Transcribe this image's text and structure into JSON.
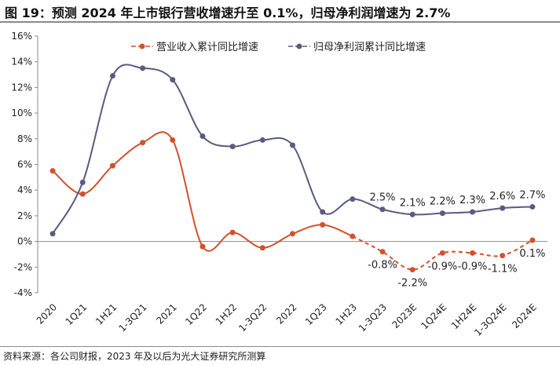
{
  "title": "图 19：预测 2024 年上市银行营收增速升至 0.1%，归母净利润增速为 2.7%",
  "source": "资料来源：各公司财报，2023 年及以后为光大证券研究所测算",
  "colors": {
    "revenue": "#d4502a",
    "profit": "#5b5a82"
  },
  "chart_data": {
    "type": "line",
    "categories": [
      "2020",
      "1Q21",
      "1H21",
      "1-3Q21",
      "2021",
      "1Q22",
      "1H22",
      "1-3Q22",
      "2022",
      "1Q23",
      "1H23",
      "1-3Q23",
      "2023E",
      "1Q24E",
      "1H24E",
      "1-3Q24E",
      "2024E"
    ],
    "ylim": [
      -4,
      16
    ],
    "yticks": [
      -4,
      -2,
      0,
      2,
      4,
      6,
      8,
      10,
      12,
      14,
      16
    ],
    "ytick_labels": [
      "-4%",
      "-2%",
      "0%",
      "2%",
      "4%",
      "6%",
      "8%",
      "10%",
      "12%",
      "14%",
      "16%"
    ],
    "series": [
      {
        "name": "营业收入累计同比增速",
        "values": [
          5.5,
          3.7,
          5.9,
          7.7,
          7.9,
          -0.4,
          0.7,
          -0.5,
          0.6,
          1.3,
          0.4,
          -0.8,
          -2.2,
          -0.9,
          -0.9,
          -1.1,
          0.1
        ],
        "forecast_from_index": 10
      },
      {
        "name": "归母净利润累计同比增速",
        "values": [
          0.6,
          4.6,
          12.9,
          13.5,
          12.6,
          8.2,
          7.4,
          7.9,
          7.5,
          2.3,
          3.3,
          2.5,
          2.1,
          2.2,
          2.3,
          2.6,
          2.7
        ]
      }
    ],
    "annotations": [
      {
        "series": 1,
        "index": 11,
        "text": "2.5%"
      },
      {
        "series": 1,
        "index": 12,
        "text": "2.1%"
      },
      {
        "series": 1,
        "index": 13,
        "text": "2.2%"
      },
      {
        "series": 1,
        "index": 14,
        "text": "2.3%"
      },
      {
        "series": 1,
        "index": 15,
        "text": "2.6%"
      },
      {
        "series": 1,
        "index": 16,
        "text": "2.7%"
      },
      {
        "series": 0,
        "index": 11,
        "text": "-0.8%"
      },
      {
        "series": 0,
        "index": 12,
        "text": "-2.2%"
      },
      {
        "series": 0,
        "index": 13,
        "text": "-0.9%"
      },
      {
        "series": 0,
        "index": 14,
        "text": "-0.9%"
      },
      {
        "series": 0,
        "index": 15,
        "text": "-1.1%"
      },
      {
        "series": 0,
        "index": 16,
        "text": "0.1%"
      }
    ],
    "legend_position": "top-center",
    "grid": false
  }
}
